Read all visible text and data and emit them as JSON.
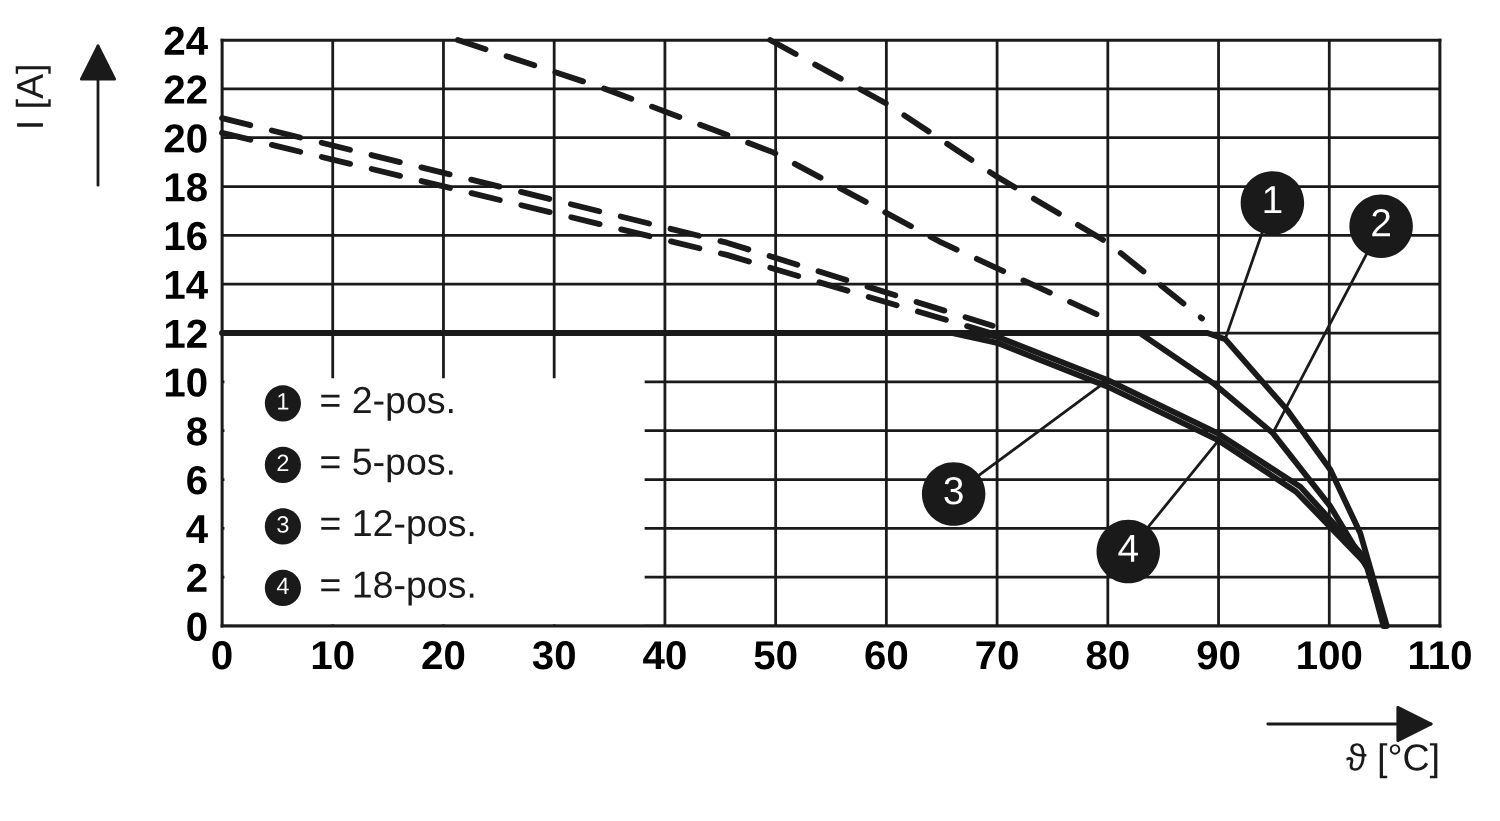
{
  "chart_data": {
    "type": "line",
    "xlabel": "ϑ [°C]",
    "ylabel": "I [A]",
    "xlim": [
      0,
      110
    ],
    "xticks": [
      0,
      10,
      20,
      30,
      40,
      50,
      60,
      70,
      80,
      90,
      100,
      110
    ],
    "ylim": [
      0,
      24
    ],
    "yticks": [
      0,
      2,
      4,
      6,
      8,
      10,
      12,
      14,
      16,
      18,
      20,
      22,
      24
    ],
    "grid": true,
    "series": [
      {
        "name": "1",
        "color": "#1a1a1a",
        "line_style": "solid",
        "x": [
          0,
          89,
          90.6,
          96.2,
          100.1,
          102.8,
          105.2
        ],
        "values": [
          12,
          12,
          11.75,
          8.85,
          6.4,
          3.8,
          0
        ]
      },
      {
        "name": "2",
        "color": "#1a1a1a",
        "line_style": "solid",
        "x": [
          82.9,
          89.5,
          94.9,
          100.1,
          103.4,
          105.1
        ],
        "values": [
          12,
          9.95,
          7.9,
          4.9,
          2.4,
          0
        ]
      },
      {
        "name": "3",
        "color": "#1a1a1a",
        "line_style": "solid",
        "x": [
          68,
          70,
          80,
          89.9,
          97.4,
          103.4,
          105
        ],
        "values": [
          12,
          11.85,
          10.07,
          7.9,
          5.7,
          2.7,
          0
        ]
      },
      {
        "name": "4",
        "color": "#1a1a1a",
        "line_style": "solid",
        "x": [
          66,
          70,
          80,
          90,
          97,
          103.4,
          104.9
        ],
        "values": [
          12,
          11.6,
          9.8,
          7.6,
          5.5,
          2.5,
          0
        ]
      },
      {
        "color": "#1a1a1a",
        "line_style": "dashed",
        "x": [
          49.5,
          60,
          70,
          80,
          88.5
        ],
        "values": [
          24,
          21.4,
          18.4,
          15.7,
          12.6
        ]
      },
      {
        "color": "#1a1a1a",
        "line_style": "dashed",
        "x": [
          21.3,
          34,
          49.8,
          65,
          79.8
        ],
        "values": [
          24,
          22.1,
          19.4,
          15.7,
          12.6
        ]
      },
      {
        "color": "#1a1a1a",
        "line_style": "dashed",
        "x": [
          0,
          45.6,
          69.6
        ],
        "values": [
          20.8,
          15.7,
          12.3
        ]
      },
      {
        "color": "#1a1a1a",
        "line_style": "dashed",
        "x": [
          0,
          45.6,
          69.4
        ],
        "values": [
          20.2,
          15.2,
          12.0
        ]
      }
    ],
    "annotations": [
      "= 2-pos.",
      "= 5-pos.",
      "= 12-pos.",
      "= 18-pos."
    ]
  }
}
